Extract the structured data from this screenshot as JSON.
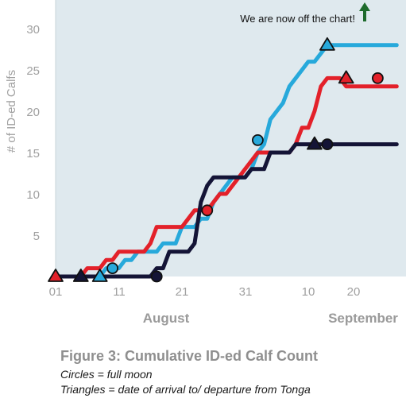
{
  "chart_data": {
    "type": "line",
    "ylabel": "# of ID-ed Calfs",
    "ylim": [
      0,
      30
    ],
    "y_ticks": [
      "5",
      "10",
      "15",
      "20",
      "25",
      "30"
    ],
    "x_tick_labels": [
      "01",
      "11",
      "21",
      "31",
      "10",
      "20"
    ],
    "x_month_labels": [
      "August",
      "September"
    ],
    "x_start": "Jul 31",
    "x_end": "Sep 24",
    "grid": false,
    "background": "#dfe9ee",
    "annotation": "We are now off the chart!",
    "annotation_arrow_color": "#1e6b2c",
    "series": [
      {
        "color": "#27a9db",
        "points": [
          [
            0,
            0
          ],
          [
            7,
            0
          ],
          [
            8,
            1
          ],
          [
            10,
            1
          ],
          [
            11,
            2
          ],
          [
            12,
            2
          ],
          [
            13,
            3
          ],
          [
            16,
            3
          ],
          [
            17,
            4
          ],
          [
            19,
            4
          ],
          [
            20,
            6
          ],
          [
            22,
            6
          ],
          [
            23,
            7
          ],
          [
            24,
            7
          ],
          [
            25,
            9
          ],
          [
            27,
            11
          ],
          [
            28,
            12
          ],
          [
            30,
            12
          ],
          [
            31,
            13
          ],
          [
            32,
            15
          ],
          [
            33,
            16
          ],
          [
            34,
            19
          ],
          [
            36,
            21
          ],
          [
            37,
            23
          ],
          [
            39,
            25
          ],
          [
            40,
            26
          ],
          [
            41,
            26
          ],
          [
            42,
            27
          ],
          [
            43,
            28
          ],
          [
            54,
            28
          ]
        ],
        "circles": [
          [
            9,
            1
          ],
          [
            32,
            16.5
          ]
        ],
        "triangles": [
          [
            7,
            0
          ],
          [
            43,
            28
          ]
        ]
      },
      {
        "color": "#e3212a",
        "points": [
          [
            0,
            0
          ],
          [
            4,
            0
          ],
          [
            5,
            1
          ],
          [
            7,
            1
          ],
          [
            8,
            2
          ],
          [
            9,
            2
          ],
          [
            10,
            3
          ],
          [
            14,
            3
          ],
          [
            15,
            4
          ],
          [
            16,
            6
          ],
          [
            20,
            6
          ],
          [
            21,
            7
          ],
          [
            22,
            8
          ],
          [
            24,
            8
          ],
          [
            25,
            9
          ],
          [
            26,
            10
          ],
          [
            27,
            10
          ],
          [
            28,
            11
          ],
          [
            29,
            12
          ],
          [
            30,
            13
          ],
          [
            31,
            14
          ],
          [
            32,
            15
          ],
          [
            37,
            15
          ],
          [
            38,
            16
          ],
          [
            39,
            18
          ],
          [
            40,
            18
          ],
          [
            41,
            20
          ],
          [
            42,
            23
          ],
          [
            43,
            24
          ],
          [
            45,
            24
          ],
          [
            46,
            23
          ],
          [
            54,
            23
          ]
        ],
        "circles": [
          [
            24,
            8
          ],
          [
            51,
            24
          ]
        ],
        "triangles": [
          [
            0,
            0
          ],
          [
            46,
            24
          ]
        ]
      },
      {
        "color": "#141436",
        "points": [
          [
            0,
            0
          ],
          [
            4,
            0
          ],
          [
            15,
            0
          ],
          [
            16,
            1
          ],
          [
            17,
            1
          ],
          [
            18,
            3
          ],
          [
            21,
            3
          ],
          [
            22,
            4
          ],
          [
            23,
            9
          ],
          [
            24,
            11
          ],
          [
            25,
            12
          ],
          [
            30,
            12
          ],
          [
            31,
            13
          ],
          [
            33,
            13
          ],
          [
            34,
            15
          ],
          [
            37,
            15
          ],
          [
            38,
            16
          ],
          [
            54,
            16
          ]
        ],
        "circles": [
          [
            16,
            0
          ],
          [
            43,
            16
          ]
        ],
        "triangles": [
          [
            4,
            0
          ],
          [
            41,
            16
          ]
        ]
      }
    ]
  },
  "caption": {
    "title": "Figure 3: Cumulative ID-ed Calf Count",
    "line1": "Circles = full moon",
    "line2": "Triangles = date of arrival to/ departure from Tonga"
  }
}
